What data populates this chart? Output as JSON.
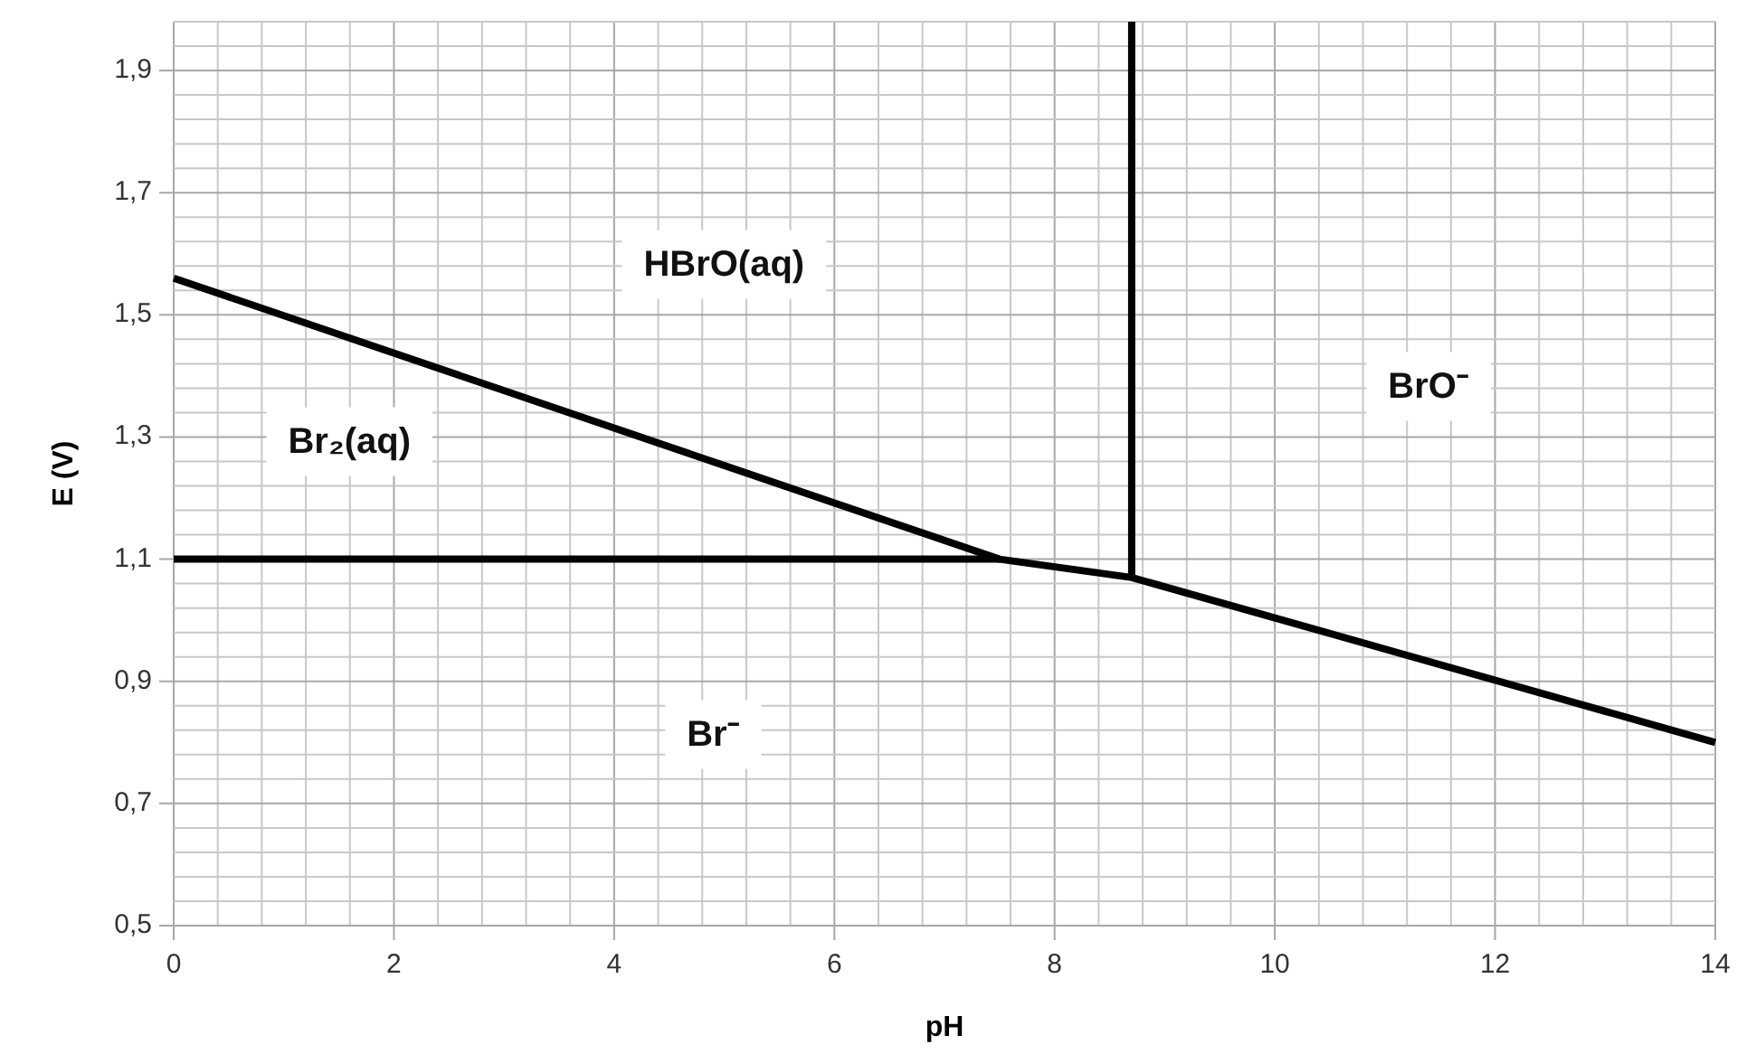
{
  "chart_data": {
    "type": "line",
    "xlabel": "pH",
    "ylabel": "E (V)",
    "xlim": [
      0,
      14
    ],
    "ylim": [
      0.5,
      1.98
    ],
    "xticks": [
      0,
      {
        "value": 0.4,
        "label": null
      },
      {
        "value": 0.8,
        "label": null
      },
      {
        "value": 1.2,
        "label": null
      },
      {
        "value": 1.6,
        "label": null
      },
      2,
      {
        "value": 2.4,
        "label": null
      },
      {
        "value": 2.8,
        "label": null
      },
      {
        "value": 3.2,
        "label": null
      },
      {
        "value": 3.6,
        "label": null
      },
      4,
      {
        "value": 4.4,
        "label": null
      },
      {
        "value": 4.8,
        "label": null
      },
      {
        "value": 5.2,
        "label": null
      },
      {
        "value": 5.6,
        "label": null
      },
      6,
      {
        "value": 6.4,
        "label": null
      },
      {
        "value": 6.8,
        "label": null
      },
      {
        "value": 7.2,
        "label": null
      },
      {
        "value": 7.6,
        "label": null
      },
      8,
      {
        "value": 8.4,
        "label": null
      },
      {
        "value": 8.8,
        "label": null
      },
      {
        "value": 9.2,
        "label": null
      },
      {
        "value": 9.6,
        "label": null
      },
      10,
      {
        "value": 10.4,
        "label": null
      },
      {
        "value": 10.8,
        "label": null
      },
      {
        "value": 11.2,
        "label": null
      },
      {
        "value": 11.6,
        "label": null
      },
      12,
      {
        "value": 12.4,
        "label": null
      },
      {
        "value": 12.8,
        "label": null
      },
      {
        "value": 13.2,
        "label": null
      },
      {
        "value": 13.6,
        "label": null
      },
      14
    ],
    "yticks": [
      {
        "value": 0.5,
        "label": "0,5"
      },
      {
        "value": 0.54,
        "label": null
      },
      {
        "value": 0.58,
        "label": null
      },
      {
        "value": 0.62,
        "label": null
      },
      {
        "value": 0.66,
        "label": null
      },
      {
        "value": 0.7,
        "label": "0,7"
      },
      {
        "value": 0.74,
        "label": null
      },
      {
        "value": 0.78,
        "label": null
      },
      {
        "value": 0.82,
        "label": null
      },
      {
        "value": 0.86,
        "label": null
      },
      {
        "value": 0.9,
        "label": "0,9"
      },
      {
        "value": 0.94,
        "label": null
      },
      {
        "value": 0.98,
        "label": null
      },
      {
        "value": 1.02,
        "label": null
      },
      {
        "value": 1.06,
        "label": null
      },
      {
        "value": 1.1,
        "label": "1,1"
      },
      {
        "value": 1.14,
        "label": null
      },
      {
        "value": 1.18,
        "label": null
      },
      {
        "value": 1.22,
        "label": null
      },
      {
        "value": 1.26,
        "label": null
      },
      {
        "value": 1.3,
        "label": "1,3"
      },
      {
        "value": 1.34,
        "label": null
      },
      {
        "value": 1.38,
        "label": null
      },
      {
        "value": 1.42,
        "label": null
      },
      {
        "value": 1.46,
        "label": null
      },
      {
        "value": 1.5,
        "label": "1,5"
      },
      {
        "value": 1.54,
        "label": null
      },
      {
        "value": 1.58,
        "label": null
      },
      {
        "value": 1.62,
        "label": null
      },
      {
        "value": 1.66,
        "label": null
      },
      {
        "value": 1.7,
        "label": "1,7"
      },
      {
        "value": 1.74,
        "label": null
      },
      {
        "value": 1.78,
        "label": null
      },
      {
        "value": 1.82,
        "label": null
      },
      {
        "value": 1.86,
        "label": null
      },
      {
        "value": 1.9,
        "label": "1,9"
      },
      {
        "value": 1.94,
        "label": null
      },
      {
        "value": 1.98,
        "label": null
      }
    ],
    "grid": true,
    "series": [
      {
        "color": "#000000",
        "x": [
          0,
          7.5,
          8.7,
          14
        ],
        "values": [
          1.56,
          1.1,
          1.07,
          0.8
        ]
      },
      {
        "color": "#000000",
        "x": [
          0,
          7.5
        ],
        "values": [
          1.1,
          1.1
        ]
      },
      {
        "color": "#000000",
        "x": [
          8.7,
          8.7
        ],
        "values": [
          1.07,
          1.98
        ]
      }
    ],
    "annotations": [
      "HBrO(aq)",
      "Br₂(aq)",
      "BrO⁻",
      "Br⁻"
    ]
  }
}
